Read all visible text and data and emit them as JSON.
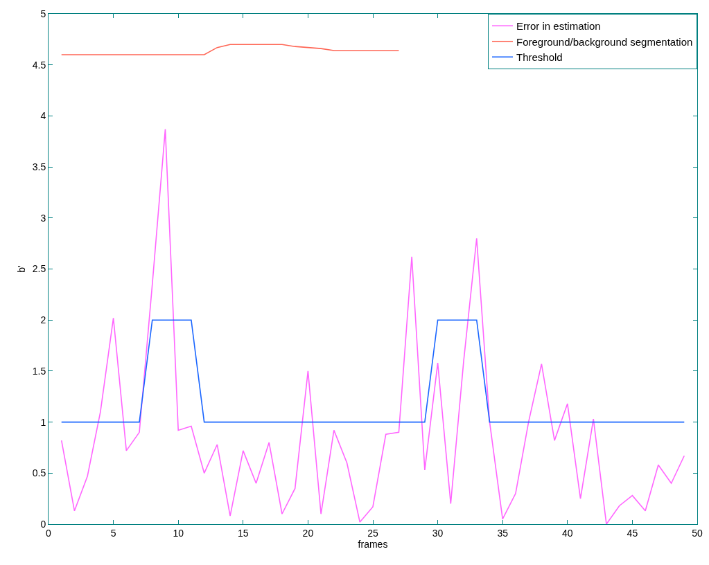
{
  "chart_data": {
    "type": "line",
    "xlabel": "frames",
    "ylabel": "b'",
    "x": [
      1,
      2,
      3,
      4,
      5,
      6,
      7,
      8,
      9,
      10,
      11,
      12,
      13,
      14,
      15,
      16,
      17,
      18,
      19,
      20,
      21,
      22,
      23,
      24,
      25,
      26,
      27,
      28,
      29,
      30,
      31,
      32,
      33,
      34,
      35,
      36,
      37,
      38,
      39,
      40,
      41,
      42,
      43,
      44,
      45,
      46,
      47,
      48,
      49
    ],
    "series": [
      {
        "name": "Error in estimation",
        "color": "#ff66ff",
        "values": [
          0.82,
          0.13,
          0.47,
          1.1,
          2.02,
          0.72,
          0.9,
          2.35,
          3.87,
          0.92,
          0.96,
          0.5,
          0.78,
          0.08,
          0.72,
          0.4,
          0.8,
          0.1,
          0.35,
          1.5,
          0.1,
          0.92,
          0.6,
          0.02,
          0.17,
          0.88,
          0.9,
          2.62,
          0.53,
          1.58,
          0.2,
          1.6,
          2.8,
          1.0,
          0.05,
          0.3,
          1.0,
          1.57,
          0.82,
          1.18,
          0.25,
          1.03,
          0.0,
          0.18,
          0.28,
          0.13,
          0.58,
          0.4,
          0.67
        ]
      },
      {
        "name": "Foreground/background segmentation",
        "color": "#ff6655",
        "values": [
          4.6,
          4.6,
          4.6,
          4.6,
          4.6,
          4.6,
          4.6,
          4.6,
          4.6,
          4.6,
          4.6,
          4.6,
          4.67,
          4.7,
          4.7,
          4.7,
          4.7,
          4.7,
          4.68,
          4.67,
          4.66,
          4.64,
          4.64,
          4.64,
          4.64,
          4.64,
          4.64,
          null,
          null,
          null,
          null,
          null,
          null,
          null,
          null,
          null,
          null,
          null,
          null,
          null,
          null,
          null,
          null,
          null,
          null,
          null,
          null,
          null,
          null
        ]
      },
      {
        "name": "Threshold",
        "color": "#1a66ff",
        "values": [
          1,
          1,
          1,
          1,
          1,
          1,
          1,
          2,
          2,
          2,
          2,
          1,
          1,
          1,
          1,
          1,
          1,
          1,
          1,
          1,
          1,
          1,
          1,
          1,
          1,
          1,
          1,
          1,
          1,
          2,
          2,
          2,
          2,
          1,
          1,
          1,
          1,
          1,
          1,
          1,
          1,
          1,
          1,
          1,
          1,
          1,
          1,
          1,
          1
        ]
      }
    ],
    "xlim": [
      0,
      50
    ],
    "xticks": [
      0,
      5,
      10,
      15,
      20,
      25,
      30,
      35,
      40,
      45,
      50
    ],
    "ylim": [
      0,
      5
    ],
    "yticks": [
      0,
      0.5,
      1,
      1.5,
      2,
      2.5,
      3,
      3.5,
      4,
      4.5,
      5
    ],
    "grid": false,
    "legend": "top right",
    "marker": "none",
    "line_style": "solid"
  }
}
